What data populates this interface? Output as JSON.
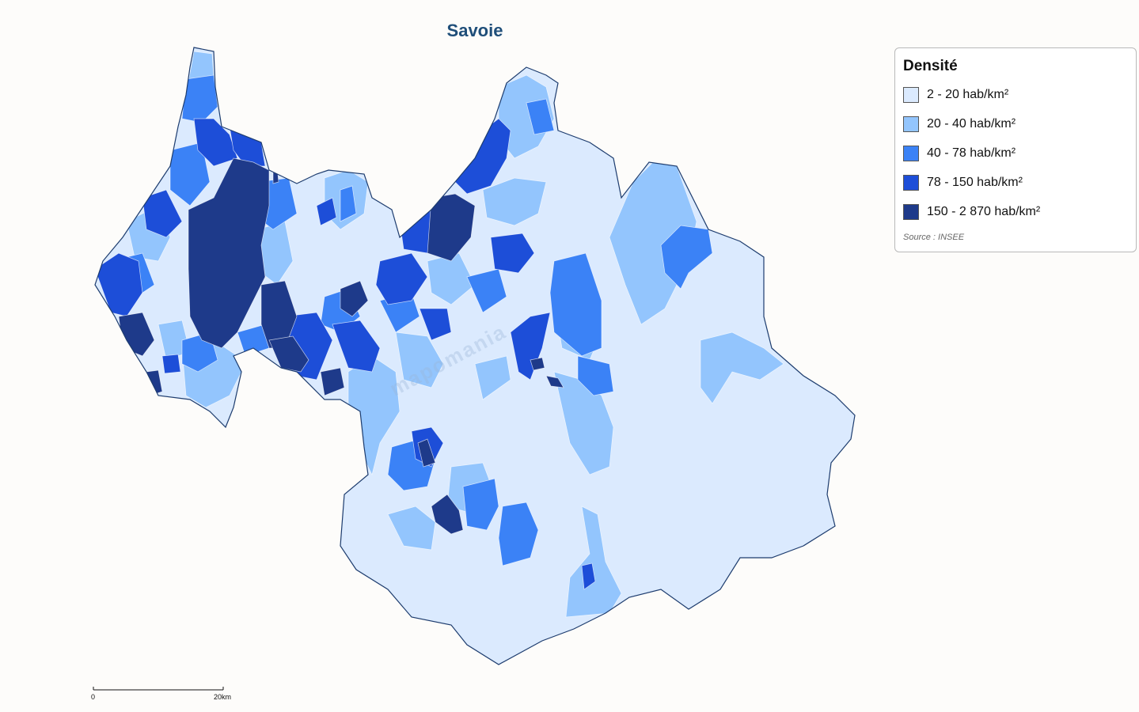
{
  "map": {
    "title": "Savoie",
    "watermark": "mapomania",
    "border_color": "#1d3c6e"
  },
  "legend": {
    "title": "Densité",
    "source": "Source : INSEE",
    "classes": [
      {
        "label": "2 - 20 hab/km²",
        "color": "#dbeafe"
      },
      {
        "label": "20 - 40 hab/km²",
        "color": "#93c5fd"
      },
      {
        "label": "40 - 78 hab/km²",
        "color": "#3b82f6"
      },
      {
        "label": "78 - 150 hab/km²",
        "color": "#1d4ed8"
      },
      {
        "label": "150 - 2 870 hab/km²",
        "color": "#1e3a8a"
      }
    ]
  },
  "scale": {
    "start": "0",
    "end": "20km"
  }
}
